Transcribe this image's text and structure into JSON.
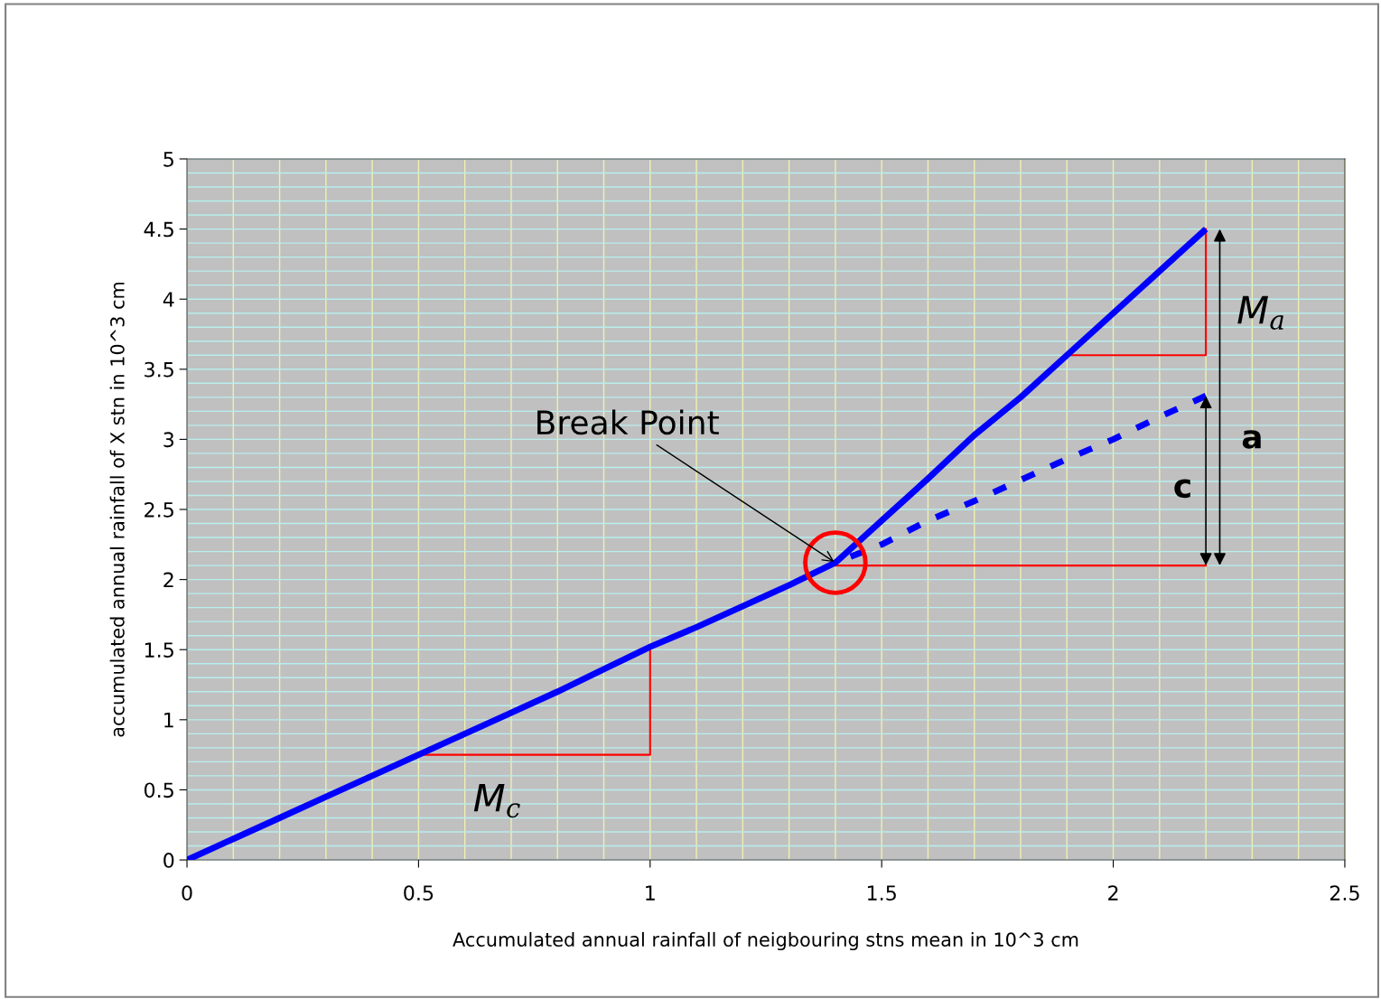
{
  "chart_data": {
    "type": "line",
    "xlabel": "Accumulated annual rainfall of neigbouring stns mean in 10^3 cm",
    "ylabel": "accumulated annual rainfall of X stn in 10^3 cm",
    "xlim": [
      0,
      2.5
    ],
    "xticks": [
      0,
      0.5,
      1,
      1.5,
      2,
      2.5
    ],
    "ylim": [
      0,
      5
    ],
    "yticks": [
      0,
      0.5,
      1,
      1.5,
      2,
      2.5,
      3,
      3.5,
      4,
      4.5,
      5
    ],
    "grid": true,
    "series": [
      {
        "color": "#0000ff",
        "line_style": "solid",
        "x": [
          0,
          0.1,
          0.2,
          0.3,
          0.4,
          0.5,
          0.6,
          0.7,
          0.8,
          0.9,
          1.0,
          1.1,
          1.2,
          1.3,
          1.4,
          1.5,
          1.6,
          1.7,
          1.8,
          1.9,
          2.0,
          2.1,
          2.2
        ],
        "values": [
          0,
          0.15,
          0.3,
          0.45,
          0.6,
          0.75,
          0.9,
          1.05,
          1.2,
          1.36,
          1.52,
          1.66,
          1.81,
          1.96,
          2.12,
          2.42,
          2.72,
          3.03,
          3.3,
          3.6,
          3.9,
          4.2,
          4.5
        ]
      },
      {
        "color": "#0000ff",
        "line_style": "dashed",
        "x": [
          1.4,
          1.5,
          1.6,
          1.7,
          1.8,
          1.9,
          2.0,
          2.1,
          2.2
        ],
        "values": [
          2.12,
          2.25,
          2.42,
          2.56,
          2.71,
          2.86,
          3.0,
          3.16,
          3.31
        ]
      }
    ],
    "annotations": [
      {
        "text": "Break Point",
        "x": 1.4,
        "y": 2.12
      },
      "M$_{c}$",
      "M$_{a}$",
      "a",
      "c"
    ]
  }
}
